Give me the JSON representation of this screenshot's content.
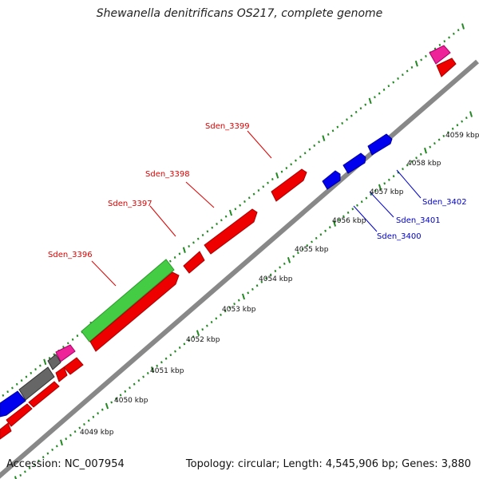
{
  "title": "Shewanella denitrificans OS217, complete genome",
  "footer": {
    "accession": "Accession: NC_007954",
    "summary": "Topology: circular; Length: 4,545,906 bp; Genes: 3,880"
  },
  "colors": {
    "backbone": "#8a8a8a",
    "forward": "#ee0000",
    "reverse": "#0000ee",
    "green": "#44cc44",
    "gray": "#666666",
    "pink": "#ee2299",
    "ticks": "#228822",
    "label_forward": "#dd0000",
    "label_reverse": "#0000cc"
  },
  "kbp_labels": [
    "4049 kbp",
    "4050 kbp",
    "4051 kbp",
    "4052 kbp",
    "4053 kbp",
    "4054 kbp",
    "4055 kbp",
    "4056 kbp",
    "4057 kbp",
    "4058 kbp",
    "4059 kbp"
  ],
  "gene_labels": {
    "forward": [
      "Sden_3396",
      "Sden_3397",
      "Sden_3398",
      "Sden_3399"
    ],
    "reverse": [
      "Sden_3400",
      "Sden_3401",
      "Sden_3402"
    ]
  }
}
